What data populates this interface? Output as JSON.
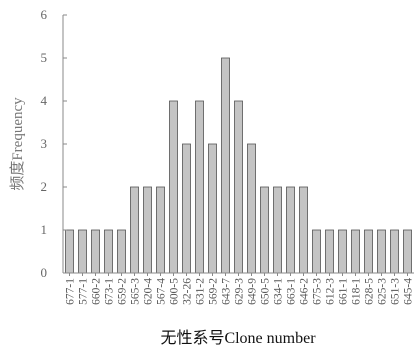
{
  "chart_data": {
    "type": "bar",
    "xlabel": "无性系号Clone number",
    "ylabel": "频度Frequency",
    "ylim": [
      0,
      6
    ],
    "yticks": [
      0,
      1,
      2,
      3,
      4,
      5,
      6
    ],
    "grid": false,
    "colors": {
      "bar_fill": "#c4c4c4",
      "bar_stroke": "#555555",
      "axis": "#888888"
    },
    "categories": [
      "677-1",
      "577-1",
      "660-2",
      "673-1",
      "659-2",
      "565-3",
      "620-4",
      "567-4",
      "600-5",
      "32-26",
      "631-2",
      "569-2",
      "643-7",
      "629-3",
      "649-9",
      "650-5",
      "634-1",
      "663-1",
      "646-2",
      "675-3",
      "612-3",
      "661-1",
      "618-1",
      "628-5",
      "625-3",
      "651-3",
      "645-4"
    ],
    "values": [
      1,
      1,
      1,
      1,
      1,
      2,
      2,
      2,
      4,
      3,
      4,
      3,
      5,
      4,
      3,
      2,
      2,
      2,
      2,
      1,
      1,
      1,
      1,
      1,
      1,
      1,
      1
    ]
  }
}
